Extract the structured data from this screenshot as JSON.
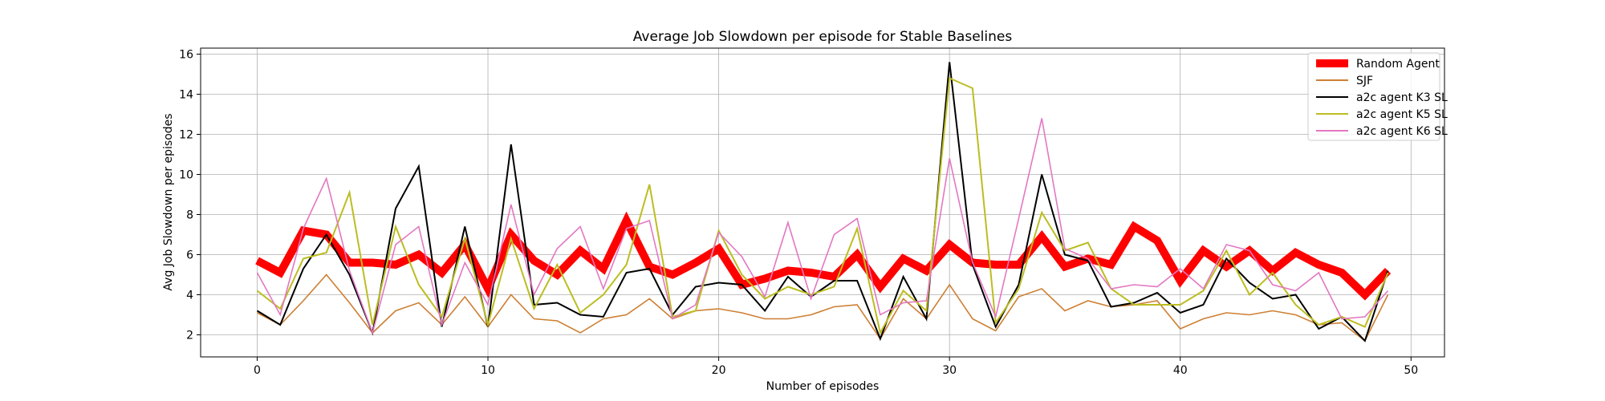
{
  "chart_data": {
    "type": "line",
    "title": "Average Job Slowdown per episode for Stable Baselines",
    "xlabel": "Number of episodes",
    "ylabel": "Avg Job Slowdown per episodes",
    "xlim": [
      -2.45,
      51.45
    ],
    "ylim": [
      0.9,
      16.3
    ],
    "xticks": [
      0,
      10,
      20,
      30,
      40,
      50
    ],
    "yticks": [
      2,
      4,
      6,
      8,
      10,
      12,
      14,
      16
    ],
    "grid": true,
    "legend_position": "top-right",
    "x": [
      0,
      1,
      2,
      3,
      4,
      5,
      6,
      7,
      8,
      9,
      10,
      11,
      12,
      13,
      14,
      15,
      16,
      17,
      18,
      19,
      20,
      21,
      22,
      23,
      24,
      25,
      26,
      27,
      28,
      29,
      30,
      31,
      32,
      33,
      34,
      35,
      36,
      37,
      38,
      39,
      40,
      41,
      42,
      43,
      44,
      45,
      46,
      47,
      48,
      49
    ],
    "series": [
      {
        "name": "Random Agent",
        "color": "#ff0000",
        "values": [
          5.7,
          5.1,
          7.2,
          7.0,
          5.6,
          5.6,
          5.5,
          6.0,
          5.1,
          6.5,
          4.3,
          7.0,
          5.7,
          5.0,
          6.2,
          5.3,
          7.7,
          5.4,
          5.0,
          5.6,
          6.3,
          4.5,
          4.8,
          5.2,
          5.1,
          4.9,
          6.0,
          4.4,
          5.8,
          5.2,
          6.5,
          5.6,
          5.5,
          5.5,
          6.9,
          5.4,
          5.8,
          5.5,
          7.4,
          6.7,
          4.7,
          6.2,
          5.4,
          6.2,
          5.2,
          6.1,
          5.5,
          5.1,
          4.0,
          5.2
        ]
      },
      {
        "name": "SJF",
        "color": "#cd7f32",
        "values": [
          3.1,
          2.5,
          3.7,
          5.0,
          3.6,
          2.1,
          3.2,
          3.6,
          2.5,
          3.9,
          2.4,
          4.0,
          2.8,
          2.7,
          2.1,
          2.8,
          3.0,
          3.8,
          2.8,
          3.2,
          3.3,
          3.1,
          2.8,
          2.8,
          3.0,
          3.4,
          3.5,
          1.8,
          3.8,
          2.8,
          4.5,
          2.8,
          2.2,
          3.9,
          4.3,
          3.2,
          3.7,
          3.4,
          3.5,
          3.7,
          2.3,
          2.8,
          3.1,
          3.0,
          3.2,
          3.0,
          2.5,
          2.6,
          1.7,
          4.0
        ]
      },
      {
        "name": "a2c agent K3 SL",
        "color": "#000000",
        "values": [
          3.2,
          2.5,
          5.3,
          7.0,
          5.0,
          2.1,
          8.3,
          10.4,
          2.4,
          7.4,
          2.4,
          11.5,
          3.5,
          3.6,
          3.0,
          2.9,
          5.1,
          5.3,
          3.0,
          4.4,
          4.6,
          4.5,
          3.2,
          4.9,
          3.9,
          4.7,
          4.7,
          1.8,
          4.9,
          2.8,
          15.6,
          5.5,
          2.4,
          4.5,
          10.0,
          6.0,
          5.7,
          3.4,
          3.6,
          4.1,
          3.1,
          3.5,
          5.8,
          4.6,
          3.8,
          4.0,
          2.3,
          2.9,
          1.7,
          5.2
        ]
      },
      {
        "name": "a2c agent K5 SL",
        "color": "#bcbd22",
        "values": [
          4.2,
          3.3,
          5.8,
          6.1,
          9.1,
          2.5,
          7.4,
          4.5,
          2.9,
          6.8,
          2.5,
          6.8,
          3.3,
          5.5,
          3.1,
          4.0,
          5.5,
          9.5,
          2.9,
          3.2,
          7.2,
          5.0,
          3.8,
          4.4,
          4.0,
          4.4,
          7.3,
          2.1,
          4.2,
          3.2,
          14.8,
          14.3,
          2.6,
          4.3,
          8.1,
          6.2,
          6.6,
          4.3,
          3.5,
          3.5,
          3.5,
          4.2,
          6.2,
          4.0,
          5.1,
          3.5,
          2.5,
          2.9,
          2.4,
          5.1
        ]
      },
      {
        "name": "a2c agent K6 SL",
        "color": "#e377c2",
        "values": [
          5.1,
          3.0,
          7.3,
          9.8,
          5.2,
          2.1,
          6.5,
          7.4,
          2.5,
          5.6,
          3.5,
          8.5,
          4.0,
          6.3,
          7.4,
          4.3,
          7.3,
          7.7,
          2.8,
          3.5,
          7.1,
          5.9,
          3.9,
          7.6,
          3.8,
          7.0,
          7.8,
          3.0,
          3.6,
          3.7,
          10.8,
          5.6,
          2.9,
          7.8,
          12.8,
          6.3,
          5.8,
          4.3,
          4.5,
          4.4,
          5.3,
          4.3,
          6.5,
          6.2,
          4.5,
          4.2,
          5.1,
          2.8,
          2.9,
          4.2
        ]
      }
    ]
  }
}
